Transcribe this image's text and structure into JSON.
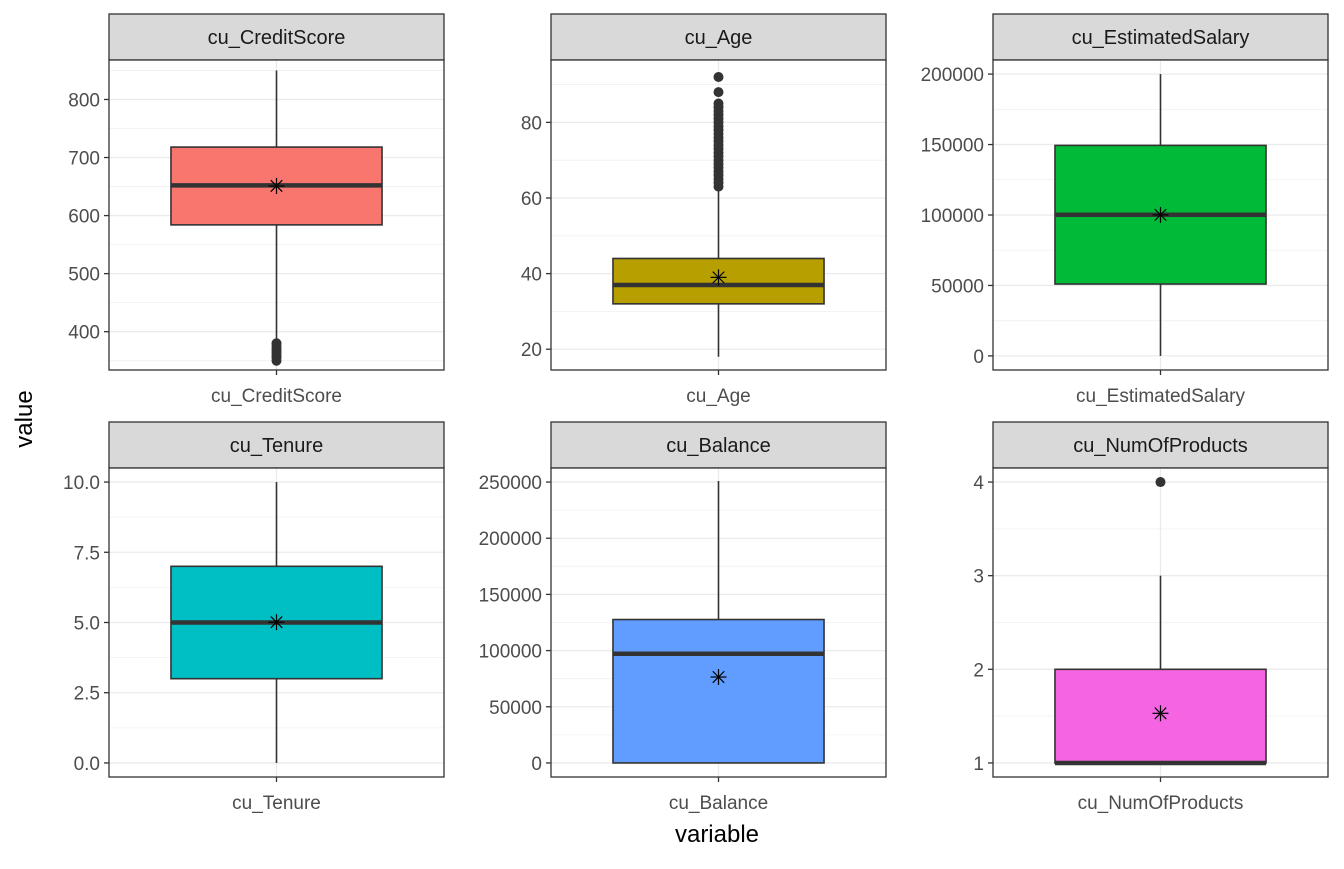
{
  "chart_data": {
    "type": "boxplot",
    "xlabel": "variable",
    "ylabel": "value",
    "grid": true,
    "legend": "none",
    "facets": [
      {
        "title": "cu_CreditScore",
        "category": "cu_CreditScore",
        "color": "#F8766D",
        "ylim": [
          334,
          868
        ],
        "ticks": [
          400,
          500,
          600,
          700,
          800
        ],
        "tick_labels": [
          "400",
          "500",
          "600",
          "700",
          "800"
        ],
        "whisker_low": 383,
        "q1": 584,
        "median": 652,
        "q3": 718,
        "whisker_high": 850,
        "mean": 651,
        "outliers": [
          350,
          355,
          359,
          363,
          367,
          371,
          376,
          380
        ]
      },
      {
        "title": "cu_Age",
        "category": "cu_Age",
        "color": "#B79F00",
        "ylim": [
          14.5,
          96.5
        ],
        "ticks": [
          20,
          40,
          60,
          80
        ],
        "tick_labels": [
          "20",
          "40",
          "60",
          "80"
        ],
        "whisker_low": 18,
        "q1": 32,
        "median": 37,
        "q3": 44,
        "whisker_high": 62,
        "mean": 39,
        "outliers": [
          63,
          64,
          65,
          66,
          67,
          68,
          69,
          70,
          71,
          72,
          73,
          74,
          75,
          76,
          77,
          78,
          79,
          80,
          81,
          82,
          83,
          84,
          85,
          88,
          92
        ]
      },
      {
        "title": "cu_EstimatedSalary",
        "category": "cu_EstimatedSalary",
        "color": "#00BA38",
        "ylim": [
          -10000,
          210000
        ],
        "ticks": [
          0,
          50000,
          100000,
          150000,
          200000
        ],
        "tick_labels": [
          "0",
          "50000",
          "100000",
          "150000",
          "200000"
        ],
        "whisker_low": 12,
        "q1": 51002,
        "median": 100194,
        "q3": 149388,
        "whisker_high": 199992,
        "mean": 100090,
        "outliers": []
      },
      {
        "title": "cu_Tenure",
        "category": "cu_Tenure",
        "color": "#00BFC4",
        "ylim": [
          -0.5,
          10.5
        ],
        "ticks": [
          0,
          2.5,
          5,
          7.5,
          10
        ],
        "tick_labels": [
          "0.0",
          "2.5",
          "5.0",
          "7.5",
          "10.0"
        ],
        "whisker_low": 0,
        "q1": 3,
        "median": 5,
        "q3": 7,
        "whisker_high": 10,
        "mean": 5.01,
        "outliers": []
      },
      {
        "title": "cu_Balance",
        "category": "cu_Balance",
        "color": "#619CFF",
        "ylim": [
          -12500,
          262500
        ],
        "ticks": [
          0,
          50000,
          100000,
          150000,
          200000,
          250000
        ],
        "tick_labels": [
          "0",
          "50000",
          "100000",
          "150000",
          "200000",
          "250000"
        ],
        "whisker_low": 0,
        "q1": 0,
        "median": 97199,
        "q3": 127644,
        "whisker_high": 250898,
        "mean": 76486,
        "outliers": []
      },
      {
        "title": "cu_NumOfProducts",
        "category": "cu_NumOfProducts",
        "color": "#F564E3",
        "ylim": [
          0.85,
          4.15
        ],
        "ticks": [
          1,
          2,
          3,
          4
        ],
        "tick_labels": [
          "1",
          "2",
          "3",
          "4"
        ],
        "whisker_low": 1,
        "q1": 1,
        "median": 1,
        "q3": 2,
        "whisker_high": 3,
        "mean": 1.53,
        "outliers": [
          4
        ]
      }
    ]
  }
}
